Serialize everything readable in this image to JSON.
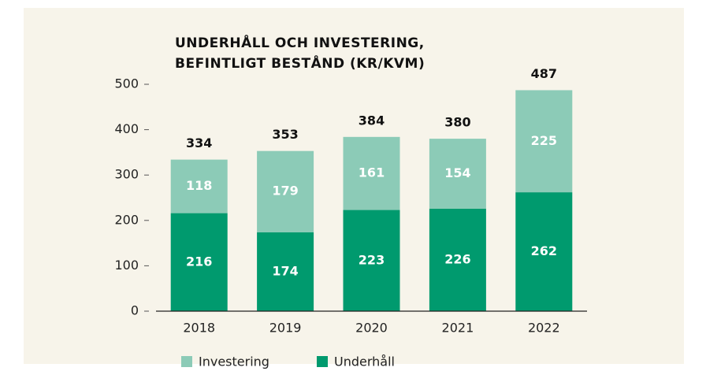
{
  "chart_data": {
    "type": "stacked_bar",
    "title": [
      "UNDERHÅLL OCH INVESTERING,",
      "BEFINTLIGT BESTÅND (KR/KVM)"
    ],
    "categories": [
      "2018",
      "2019",
      "2020",
      "2021",
      "2022"
    ],
    "series": [
      {
        "name": "Investering",
        "color": "#8ccbb7",
        "values": [
          118,
          179,
          161,
          154,
          225
        ]
      },
      {
        "name": "Underhåll",
        "color": "#009a6e",
        "values": [
          216,
          174,
          223,
          226,
          262
        ]
      }
    ],
    "totals": [
      334,
      353,
      384,
      380,
      487
    ],
    "ylim": [
      0,
      500
    ],
    "yticks": [
      0,
      100,
      200,
      300,
      400,
      500
    ]
  }
}
